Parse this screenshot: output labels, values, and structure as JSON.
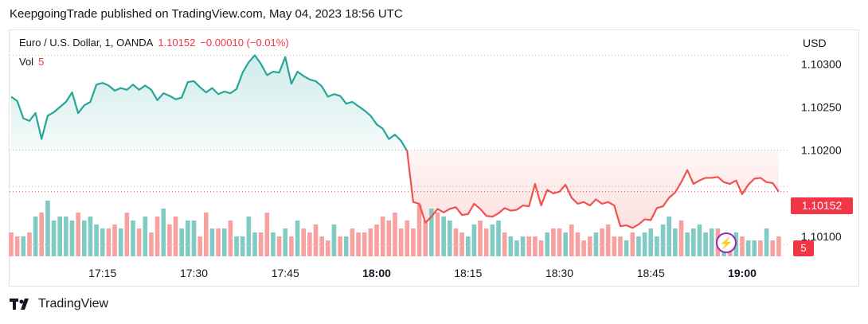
{
  "header": {
    "published_line": "KeepgoingTrade published on TradingView.com, May 04, 2023 18:56 UTC"
  },
  "legend": {
    "symbol": "Euro / U.S. Dollar, 1, OANDA",
    "last": "1.10152",
    "change": "−0.00010 (−0.01%)",
    "vol_label": "Vol",
    "vol_value": "5"
  },
  "axis": {
    "currency": "USD",
    "price_ticks": [
      "1.10300",
      "1.10250",
      "1.10200",
      "1.10100"
    ],
    "time_ticks": [
      "17:15",
      "17:30",
      "17:45",
      "18:00",
      "18:15",
      "18:30",
      "18:45",
      "19:00"
    ],
    "bold_time_ticks": [
      "18:00",
      "19:00"
    ]
  },
  "price_label": "1.10152",
  "volume_label": "5",
  "footer": {
    "brand": "TradingView"
  },
  "colors": {
    "up": "#26a69a",
    "down": "#ef5350",
    "up_vol": "#80cbc4",
    "down_vol": "#f7a1a1",
    "label_red": "#f23645",
    "grid": "#e0e3eb"
  },
  "chart_data": {
    "type": "area",
    "x_start": "17:00",
    "interval_minutes": 1,
    "reference_price": 1.102,
    "price_range": [
      1.1009,
      1.10315
    ],
    "price": [
      1.10262,
      1.10257,
      1.10237,
      1.10234,
      1.10243,
      1.10213,
      1.1024,
      1.10244,
      1.1025,
      1.10256,
      1.10267,
      1.10243,
      1.10252,
      1.10256,
      1.10276,
      1.10278,
      1.10275,
      1.10269,
      1.10272,
      1.1027,
      1.10276,
      1.1027,
      1.10275,
      1.1027,
      1.10258,
      1.10266,
      1.10263,
      1.10259,
      1.10261,
      1.10279,
      1.1028,
      1.10273,
      1.10267,
      1.10272,
      1.10265,
      1.10268,
      1.10266,
      1.10271,
      1.1029,
      1.10302,
      1.1031,
      1.103,
      1.10287,
      1.10291,
      1.1029,
      1.10308,
      1.10277,
      1.10291,
      1.10286,
      1.10282,
      1.1028,
      1.10274,
      1.10262,
      1.10265,
      1.10263,
      1.10254,
      1.10256,
      1.10251,
      1.10246,
      1.1024,
      1.1023,
      1.10225,
      1.10213,
      1.10218,
      1.10211,
      1.10199,
      1.1014,
      1.10138,
      1.10116,
      1.10123,
      1.10132,
      1.10128,
      1.10132,
      1.10134,
      1.10125,
      1.10126,
      1.10138,
      1.10132,
      1.10124,
      1.10123,
      1.10127,
      1.10133,
      1.1013,
      1.10131,
      1.10136,
      1.10135,
      1.10161,
      1.10136,
      1.10154,
      1.1015,
      1.10152,
      1.1016,
      1.10145,
      1.10138,
      1.1014,
      1.10136,
      1.10143,
      1.10138,
      1.1014,
      1.10136,
      1.10112,
      1.10113,
      1.1011,
      1.10114,
      1.1012,
      1.10119,
      1.10133,
      1.10135,
      1.10145,
      1.10151,
      1.10163,
      1.10177,
      1.10161,
      1.10165,
      1.10168,
      1.10168,
      1.10169,
      1.10163,
      1.10161,
      1.10165,
      1.10149,
      1.1016,
      1.10167,
      1.10168,
      1.10163,
      1.10162,
      1.10152
    ],
    "volume": [
      6,
      5,
      5,
      6,
      10,
      11,
      14,
      9,
      10,
      10,
      9,
      11,
      9,
      10,
      8,
      7,
      7,
      8,
      7,
      11,
      9,
      7,
      10,
      6,
      10,
      12,
      8,
      10,
      7,
      9,
      9,
      5,
      11,
      7,
      7,
      7,
      9,
      5,
      5,
      10,
      6,
      6,
      11,
      6,
      5,
      7,
      5,
      9,
      7,
      6,
      8,
      5,
      4,
      8,
      5,
      5,
      7,
      6,
      6,
      7,
      8,
      10,
      9,
      11,
      7,
      9,
      7,
      13,
      9,
      12,
      11,
      10,
      9,
      7,
      6,
      5,
      8,
      9,
      7,
      8,
      9,
      6,
      5,
      4,
      5,
      5,
      5,
      4,
      6,
      7,
      7,
      6,
      8,
      6,
      4,
      5,
      6,
      7,
      8,
      5,
      5,
      4,
      6,
      5,
      6,
      7,
      5,
      8,
      10,
      7,
      9,
      6,
      7,
      8,
      6,
      7,
      7,
      5,
      5,
      6,
      5,
      4,
      4,
      4,
      7,
      4,
      5
    ],
    "volume_direction": [
      "d",
      "d",
      "u",
      "d",
      "u",
      "d",
      "u",
      "u",
      "u",
      "u",
      "u",
      "d",
      "u",
      "u",
      "u",
      "u",
      "d",
      "d",
      "u",
      "d",
      "u",
      "d",
      "u",
      "d",
      "d",
      "u",
      "d",
      "d",
      "u",
      "u",
      "u",
      "d",
      "d",
      "u",
      "d",
      "u",
      "d",
      "u",
      "u",
      "u",
      "u",
      "d",
      "d",
      "u",
      "d",
      "u",
      "d",
      "u",
      "d",
      "d",
      "d",
      "d",
      "d",
      "u",
      "d",
      "u",
      "d",
      "d",
      "d",
      "d",
      "d",
      "d",
      "d",
      "d",
      "d",
      "d",
      "d",
      "d",
      "d",
      "u",
      "d",
      "u",
      "u",
      "d",
      "d",
      "u",
      "u",
      "d",
      "d",
      "u",
      "u",
      "d",
      "u",
      "u",
      "u",
      "d",
      "d",
      "d",
      "u",
      "d",
      "d",
      "u",
      "d",
      "d",
      "d",
      "d",
      "u",
      "d",
      "d",
      "d",
      "d",
      "u",
      "d",
      "u",
      "u",
      "u",
      "u",
      "u",
      "u",
      "u",
      "d",
      "u",
      "u",
      "u",
      "u",
      "u",
      "d",
      "u",
      "d",
      "u",
      "d",
      "u",
      "u",
      "d",
      "u",
      "d",
      "d"
    ]
  }
}
